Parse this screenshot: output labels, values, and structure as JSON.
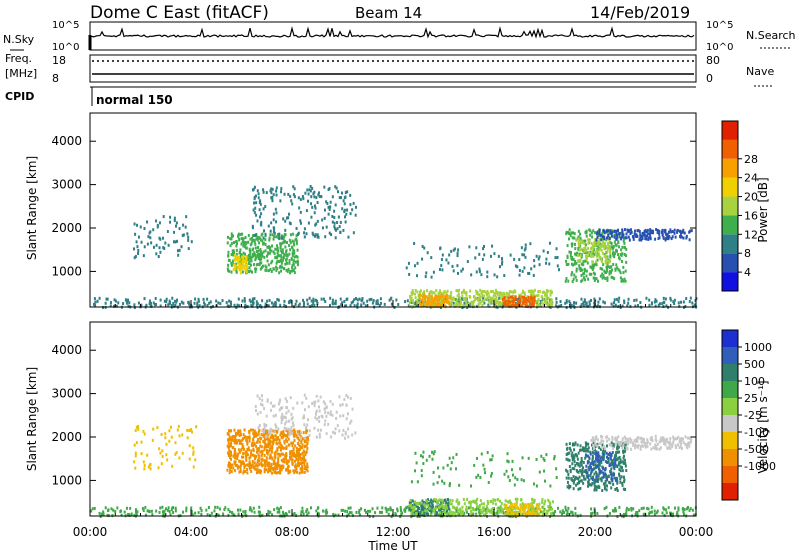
{
  "header": {
    "title": "Dome C East (fitACF)",
    "beam": "Beam 14",
    "date": "14/Feb/2019"
  },
  "top_panels": {
    "nsky_label": "N.Sky",
    "nsky_ticks": [
      "10^5",
      "10^0"
    ],
    "nsearch_ticks": [
      "10^5",
      "10^0"
    ],
    "nsearch_label": "N.Search",
    "freq_label_line1": "Freq.",
    "freq_label_line2": "[MHz]",
    "freq_ticks": [
      "18",
      "8"
    ],
    "nave_ticks": [
      "80",
      "0"
    ],
    "nave_label": "Nave",
    "cpid_label": "CPID",
    "cpid_value": "normal 150"
  },
  "chart_data": [
    {
      "type": "heatmap",
      "title": "",
      "ylabel": "Slant Range [km]",
      "xlabel": "",
      "x_ticks": [
        "00:00",
        "04:00",
        "08:00",
        "12:00",
        "16:00",
        "20:00",
        "00:00"
      ],
      "x_range_hours": [
        0,
        24
      ],
      "yticks": [
        1000,
        2000,
        3000,
        4000
      ],
      "ylim": [
        180,
        4650
      ],
      "colorbar": {
        "label": "Power [dB]",
        "ticks": [
          "4",
          "8",
          "12",
          "16",
          "20",
          "24",
          "28"
        ],
        "colors": [
          "#1010e0",
          "#2850b0",
          "#2f7f86",
          "#3fae4c",
          "#a8d240",
          "#f0d000",
          "#f7a000",
          "#f06000",
          "#e02000"
        ]
      },
      "scatter_regions": [
        {
          "t0": 0.0,
          "t1": 24.0,
          "r0": 200,
          "r1": 420,
          "value": "8",
          "density": 0.25
        },
        {
          "t0": 12.6,
          "t1": 18.3,
          "r0": 220,
          "r1": 600,
          "value": "16",
          "density": 0.5
        },
        {
          "t0": 13.0,
          "t1": 14.2,
          "r0": 220,
          "r1": 500,
          "value": "24",
          "density": 0.6
        },
        {
          "t0": 16.3,
          "t1": 17.6,
          "r0": 220,
          "r1": 450,
          "value": "28",
          "density": 0.6
        },
        {
          "t0": 5.4,
          "t1": 8.2,
          "r0": 1000,
          "r1": 1900,
          "value": "12",
          "density": 0.35
        },
        {
          "t0": 5.6,
          "t1": 6.2,
          "r0": 1000,
          "r1": 1400,
          "value": "20",
          "density": 0.45
        },
        {
          "t0": 6.4,
          "t1": 10.5,
          "r0": 1800,
          "r1": 3000,
          "value": "8",
          "density": 0.12
        },
        {
          "t0": 1.7,
          "t1": 4.2,
          "r0": 1300,
          "r1": 2300,
          "value": "8",
          "density": 0.06
        },
        {
          "t0": 12.5,
          "t1": 18.6,
          "r0": 900,
          "r1": 1700,
          "value": "8",
          "density": 0.05
        },
        {
          "t0": 18.8,
          "t1": 21.2,
          "r0": 800,
          "r1": 2000,
          "value": "12",
          "density": 0.3
        },
        {
          "t0": 19.2,
          "t1": 20.6,
          "r0": 1200,
          "r1": 1800,
          "value": "16",
          "density": 0.3
        },
        {
          "t0": 20.0,
          "t1": 23.8,
          "r0": 1750,
          "r1": 2000,
          "value": "4",
          "density": 0.4
        }
      ]
    },
    {
      "type": "heatmap",
      "title": "",
      "ylabel": "Slant Range [km]",
      "xlabel": "Time UT",
      "x_ticks": [
        "00:00",
        "04:00",
        "08:00",
        "12:00",
        "16:00",
        "20:00",
        "00:00"
      ],
      "x_range_hours": [
        0,
        24
      ],
      "yticks": [
        1000,
        2000,
        3000,
        4000
      ],
      "ylim": [
        180,
        4650
      ],
      "colorbar": {
        "label": "Velocity [m s⁻¹]",
        "ticks": [
          "1000",
          "500",
          "100",
          "25",
          "-25",
          "-100",
          "-500",
          "-1000"
        ],
        "colors": [
          "#1c2fd0",
          "#2f5fb8",
          "#2f7f6a",
          "#3fa848",
          "#8ad040",
          "#c8c8c8",
          "#f0c000",
          "#f09000",
          "#f06000",
          "#e02000"
        ]
      },
      "scatter_regions": [
        {
          "t0": 0.0,
          "t1": 24.0,
          "r0": 200,
          "r1": 420,
          "value": "100",
          "density": 0.22
        },
        {
          "t0": 12.6,
          "t1": 14.2,
          "r0": 220,
          "r1": 600,
          "value": "500",
          "density": 0.45
        },
        {
          "t0": 12.6,
          "t1": 18.3,
          "r0": 220,
          "r1": 600,
          "value": "25",
          "density": 0.35
        },
        {
          "t0": 16.4,
          "t1": 17.8,
          "r0": 220,
          "r1": 500,
          "value": "-100",
          "density": 0.45
        },
        {
          "t0": 5.4,
          "t1": 8.6,
          "r0": 1200,
          "r1": 2200,
          "value": "-500",
          "density": 0.5
        },
        {
          "t0": 6.5,
          "t1": 10.5,
          "r0": 2000,
          "r1": 3000,
          "value": "-25",
          "density": 0.12
        },
        {
          "t0": 1.7,
          "t1": 4.2,
          "r0": 1300,
          "r1": 2300,
          "value": "-100",
          "density": 0.06
        },
        {
          "t0": 12.5,
          "t1": 18.6,
          "r0": 900,
          "r1": 1700,
          "value": "100",
          "density": 0.05
        },
        {
          "t0": 18.8,
          "t1": 21.2,
          "r0": 800,
          "r1": 1900,
          "value": "500",
          "density": 0.3
        },
        {
          "t0": 19.6,
          "t1": 20.8,
          "r0": 1000,
          "r1": 1700,
          "value": "1000",
          "density": 0.25
        },
        {
          "t0": 19.8,
          "t1": 23.8,
          "r0": 1750,
          "r1": 2050,
          "value": "-25",
          "density": 0.4
        }
      ]
    }
  ]
}
